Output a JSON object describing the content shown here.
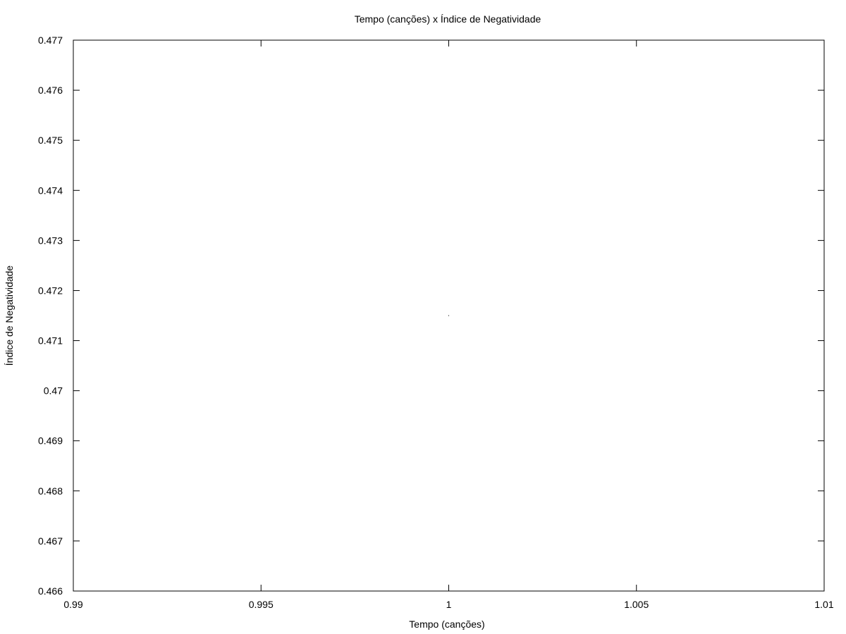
{
  "chart_data": {
    "type": "scatter",
    "title": "Tempo (canções) x Índice de Negatividade",
    "xlabel": "Tempo (canções)",
    "ylabel": "Índice de Negatividade",
    "xlim": [
      0.99,
      1.01
    ],
    "ylim": [
      0.466,
      0.477
    ],
    "x_ticks": [
      "0.99",
      "0.995",
      "1",
      "1.005",
      "1.01"
    ],
    "y_ticks": [
      "0.466",
      "0.467",
      "0.468",
      "0.469",
      "0.47",
      "0.471",
      "0.472",
      "0.473",
      "0.474",
      "0.475",
      "0.476",
      "0.477"
    ],
    "grid": false,
    "legend": "none",
    "series": [
      {
        "points": [
          {
            "x": 1,
            "y": 0.4715
          }
        ]
      }
    ],
    "colors": {
      "axis": "#000000",
      "point": "#000000",
      "background": "#ffffff"
    }
  }
}
